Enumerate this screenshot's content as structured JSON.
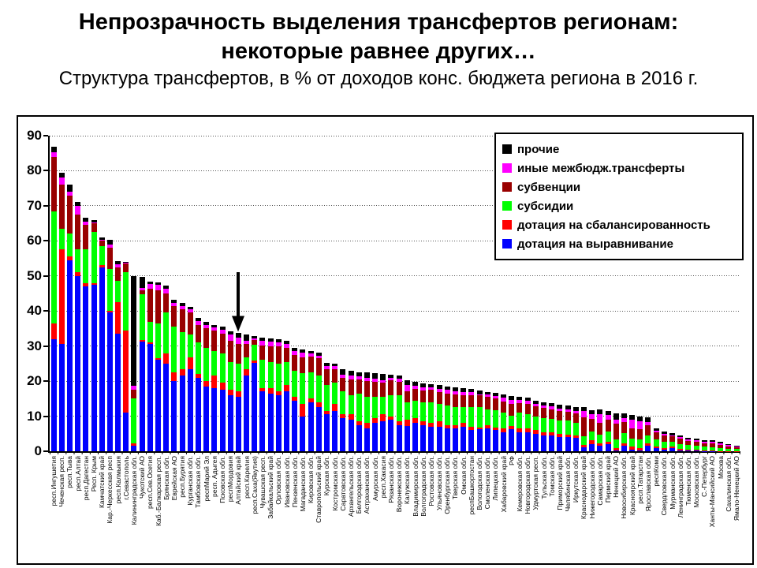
{
  "title": {
    "line1": "Непрозрачность выделения трансфертов регионам:",
    "line2": "некоторые равнее других…",
    "subtitle": "Структура трансфертов, в % от доходов конс. бюджета региона в 2016 г."
  },
  "legend": {
    "entries": [
      {
        "label": "прочие",
        "color": "#000000"
      },
      {
        "label": "иные межбюдж.трансферты",
        "color": "#FF00FF"
      },
      {
        "label": "субвенции",
        "color": "#990000"
      },
      {
        "label": "субсидии",
        "color": "#00FF00"
      },
      {
        "label": "дотация на сбалансированность",
        "color": "#FF0000"
      },
      {
        "label": "дотация на выравнивание",
        "color": "#0000FF"
      }
    ],
    "position": "top-right",
    "border_color": "#000000"
  },
  "chart_data": {
    "type": "bar",
    "stacked": true,
    "grid": "horizontal-dotted",
    "ylim": [
      0,
      90
    ],
    "yticks": [
      0,
      10,
      20,
      30,
      40,
      50,
      60,
      70,
      80,
      90
    ],
    "xlabel": "",
    "ylabel": "",
    "categories": [
      "респ.Ингушетия",
      "Чеченская респ.",
      "респ.Тыва",
      "респ.Алтай",
      "респ.Дагестан",
      "Респ. Крым",
      "Камчатский край",
      "Кар.-Черкесская респ",
      "респ.Калмыкия",
      "г.Севастополь",
      "Калининградская обл.",
      "Чукотский АО",
      "респ.Сев.Осетия",
      "Каб.-Балкарская респ.",
      "Брянская обл.",
      "Еврейская АО",
      "респ.Бурятия",
      "Курганская обл.",
      "Тамбовская обл.",
      "респМарий Эл",
      "респ. Адыгея",
      "Псковская обл.",
      "респМордовия",
      "Алтайский край",
      "респ.Карелия",
      "респ.Саха(Якутия)",
      "Чувашская респ.",
      "Забайкальский край",
      "Орловская обл.",
      "Ивановская обл.",
      "Пензенская обл.",
      "Магаданская обл.",
      "Кировская обл.",
      "Ставропольский край",
      "Курская обл.",
      "Костромская обл.",
      "Саратовская обл.",
      "Архангельская обл.",
      "Белгородская обл.",
      "Астраханская обл.",
      "Амурская обл.",
      "респ.Хакасия",
      "Рязанская обл.",
      "Воронежская обл.",
      "Калужская обл.",
      "Владимирская обл.",
      "Волгоградская обл.",
      "Ростовская обл.",
      "Ульяновская обл.",
      "Оренбургская обл.",
      "Тверская обл.",
      "Омская обл.",
      "респБашкортостан",
      "Вологодская обл.",
      "Смоленская обл.",
      "Липецкая обл.",
      "Хабаровский край",
      "РФ",
      "Кемеровская обл.",
      "Новгородская обл.",
      "Удмуртская респ.",
      "Тульская обл.",
      "Томская обл.",
      "Приморский край",
      "Челябинская обл.",
      "Иркутская обл.",
      "Краснодарский край",
      "Нижегородская обл.",
      "Самарская обл.",
      "Пермский край",
      "Ненецкий АО",
      "Новосибирская обл.",
      "Красноярский край",
      "респ.Татарстан",
      "Ярославская обл.",
      "респКоми",
      "Свердловская обл.",
      "Мурманская обл.",
      "Ленинградская обл.",
      "Тюменская обл.",
      "Московская обл.",
      "С.-Петербург",
      "Ханты-Мансийский АО",
      "Москва",
      "Сахалинская обл.",
      "Ямало-Ненецкий АО"
    ],
    "series": [
      {
        "name": "дотация на выравнивание",
        "color": "#0000FF",
        "values": [
          32,
          30.5,
          54.5,
          50,
          47,
          47.5,
          52.5,
          39.5,
          33.5,
          11,
          1.5,
          31.3,
          30.5,
          26,
          25,
          20,
          21.5,
          23.4,
          21,
          18.5,
          18,
          17.5,
          16,
          15.5,
          21.5,
          25.3,
          17,
          16.5,
          16,
          17,
          14.5,
          9.8,
          14,
          12.5,
          10.5,
          11.5,
          9.5,
          9,
          7.5,
          6.5,
          8,
          8.5,
          9,
          7.5,
          7.2,
          8,
          7.5,
          7,
          7,
          6.5,
          6.5,
          7,
          6,
          6.3,
          6.5,
          6,
          5.5,
          6.3,
          5.5,
          5.5,
          5,
          4.5,
          4.5,
          4,
          4,
          3.8,
          1.2,
          2,
          1.5,
          2,
          0.3,
          1.5,
          0.5,
          0.3,
          1.5,
          0.8,
          0.5,
          0.8,
          0.3,
          0.2,
          0.2,
          0.1,
          0.1,
          0,
          0,
          0
        ]
      },
      {
        "name": "дотация на сбалансированность",
        "color": "#FF0000",
        "values": [
          4.5,
          27,
          1,
          1,
          1,
          0.5,
          0.5,
          0.5,
          9,
          23.5,
          0.8,
          0.5,
          0.5,
          0.5,
          3,
          2.5,
          2,
          3.4,
          1,
          1.5,
          3.5,
          2,
          1.5,
          1.5,
          1.8,
          0.5,
          1,
          1.5,
          1,
          2,
          1,
          3.8,
          1,
          1.5,
          1,
          2,
          1,
          1.5,
          1,
          1.5,
          1.5,
          2,
          1,
          1,
          1.9,
          1.5,
          1,
          1,
          1.5,
          1,
          1,
          1,
          1,
          0.5,
          1,
          0.8,
          1,
          0.9,
          1,
          1,
          1,
          1,
          0.8,
          1,
          0.8,
          0.8,
          0.5,
          1.2,
          0.8,
          0.8,
          0.5,
          0.8,
          0.8,
          0.5,
          0.8,
          0.5,
          0.4,
          0.5,
          0.3,
          0.3,
          0.2,
          0.2,
          0.2,
          0.1,
          0.1,
          0.1
        ]
      },
      {
        "name": "субсидии",
        "color": "#00FF00",
        "values": [
          32,
          6,
          6.5,
          6.5,
          9.5,
          14.5,
          5.5,
          12,
          6,
          16.5,
          12.7,
          13,
          5.9,
          10,
          11.5,
          13,
          10.5,
          6.4,
          9,
          9.5,
          7,
          8.5,
          8,
          8,
          3.4,
          4.5,
          8,
          7.5,
          8,
          6.5,
          7.5,
          8.6,
          7.5,
          7.5,
          7.5,
          6,
          6.5,
          5.5,
          8,
          7.5,
          6,
          5,
          6,
          7.5,
          4.9,
          5,
          5.5,
          6,
          5,
          5.5,
          5,
          4.5,
          5.5,
          5.8,
          4.5,
          5,
          4.5,
          2.9,
          4.5,
          4,
          4,
          4,
          4,
          3.8,
          4,
          3.6,
          2.6,
          2.5,
          2.5,
          2.8,
          2.5,
          2.8,
          2.2,
          2.5,
          2.3,
          2,
          1.8,
          1.5,
          1.5,
          1.2,
          1.1,
          1,
          0.9,
          0.8,
          0.6,
          0.5
        ]
      },
      {
        "name": "субвенции",
        "color": "#990000",
        "values": [
          15.5,
          12.5,
          11,
          10,
          7,
          2.5,
          1.5,
          6,
          4,
          2.5,
          2.6,
          1.2,
          9.5,
          9.4,
          5.5,
          6,
          6.5,
          6.4,
          5,
          5.5,
          6,
          5.5,
          6,
          5.6,
          4,
          1.5,
          4.2,
          4.5,
          5,
          4,
          4.5,
          4.5,
          4.5,
          5,
          4.5,
          4,
          4,
          4.5,
          4,
          4.5,
          4.3,
          4,
          4.2,
          3.8,
          3,
          3.3,
          3.3,
          3.5,
          3.3,
          3.5,
          3.8,
          3.5,
          3.5,
          3.3,
          3.5,
          3.3,
          3.2,
          3.5,
          2.8,
          3,
          2.8,
          2.8,
          2.7,
          2.6,
          2.5,
          2.5,
          5.3,
          3.5,
          3.2,
          3.5,
          4.5,
          3.2,
          3,
          3,
          2.8,
          2,
          1.8,
          1.4,
          1.5,
          1.2,
          1.2,
          1,
          1,
          0.9,
          0.7,
          0.5
        ]
      },
      {
        "name": "иные межбюдж.трансферты",
        "color": "#FF00FF",
        "values": [
          1.2,
          2,
          1,
          2.5,
          1,
          0.3,
          0.3,
          1,
          0.8,
          0.2,
          1.1,
          0.5,
          1.3,
          1.5,
          1.3,
          0.8,
          1,
          0.8,
          1.2,
          1,
          0.8,
          1.2,
          1.8,
          1.8,
          0.9,
          0.3,
          1.3,
          1.3,
          1,
          1.1,
          1,
          1.4,
          0.8,
          0.7,
          0.8,
          0.7,
          0.9,
          1,
          0.8,
          1,
          1,
          0.8,
          0.8,
          0.9,
          1.9,
          0.9,
          0.9,
          0.8,
          0.9,
          1,
          0.9,
          0.9,
          0.8,
          0.4,
          0.6,
          0.6,
          1.1,
          1.1,
          0.8,
          0.8,
          0.7,
          0.8,
          0.8,
          0.8,
          0.7,
          0.8,
          1.8,
          1.3,
          2.5,
          1.2,
          1.2,
          1.2,
          2.4,
          2.2,
          1,
          0.5,
          0.5,
          0.4,
          0.4,
          0.4,
          0.4,
          0.4,
          0.4,
          0.4,
          0.3,
          0.2
        ]
      },
      {
        "name": "прочие",
        "color": "#000000",
        "values": [
          1.7,
          1.5,
          2,
          1,
          1,
          0.7,
          0.7,
          1.2,
          0.9,
          0.3,
          31.3,
          3.2,
          0.7,
          0.7,
          1,
          1,
          0.9,
          0.7,
          0.9,
          0.9,
          0.6,
          0.9,
          1,
          1.3,
          1.6,
          0.7,
          0.9,
          0.9,
          0.9,
          1,
          0.9,
          0.9,
          0.8,
          0.9,
          1,
          0.8,
          1.5,
          1.5,
          1.3,
          1.4,
          1.5,
          1.8,
          0.9,
          1,
          1.3,
          1.1,
          1.2,
          0.8,
          1.1,
          1,
          1,
          1,
          0.9,
          1.1,
          0.7,
          0.9,
          0.9,
          1.1,
          1,
          1,
          0.9,
          0.9,
          1,
          1,
          1,
          1.1,
          1.2,
          1.2,
          1.4,
          1.3,
          1.8,
          1.3,
          1.5,
          1.5,
          1.2,
          0.7,
          0.6,
          0.6,
          0.6,
          0.5,
          0.5,
          0.5,
          0.5,
          0.5,
          0.3,
          0.3
        ]
      }
    ],
    "annotation": {
      "shape": "down-arrow",
      "color": "#000000",
      "category": "Алтайский край",
      "category_index": 23,
      "value_top": 51,
      "value_tip": 34
    }
  }
}
